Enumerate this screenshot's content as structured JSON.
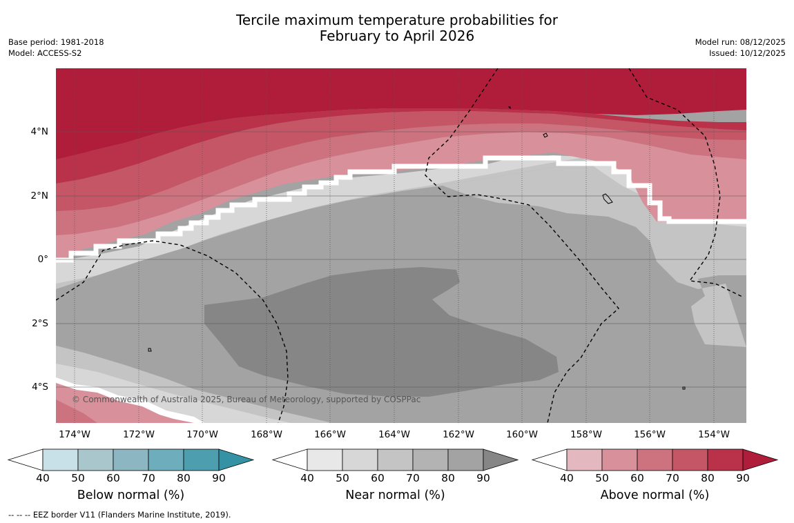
{
  "title": {
    "line1": "Tercile maximum temperature probabilities for",
    "line2": "February to April 2026"
  },
  "meta_left": {
    "base_period": "Base period: 1981-2018",
    "model": "Model: ACCESS-S2"
  },
  "meta_right": {
    "model_run": "Model run: 08/12/2025",
    "issued": "Issued: 10/12/2025"
  },
  "map": {
    "lat_labels": [
      "4°N",
      "2°N",
      "0°",
      "2°S",
      "4°S"
    ],
    "lon_labels": [
      "174°W",
      "172°W",
      "170°W",
      "168°W",
      "166°W",
      "164°W",
      "162°W",
      "160°W",
      "158°W",
      "156°W",
      "154°W"
    ],
    "copyright": "© Commonwealth of Australia 2025, Bureau of Meteorology, supported by COSPPac"
  },
  "colorbars": [
    {
      "title": "Below normal (%)",
      "ticks": [
        "40",
        "50",
        "60",
        "70",
        "80",
        "90"
      ],
      "colors": [
        "#ffffff",
        "#c8e0e7",
        "#a8c6cc",
        "#8cb6c2",
        "#6eaebc",
        "#4d9eae",
        "#3592a4"
      ]
    },
    {
      "title": "Near normal (%)",
      "ticks": [
        "40",
        "50",
        "60",
        "70",
        "80",
        "90"
      ],
      "colors": [
        "#ffffff",
        "#e8e8e8",
        "#d7d7d7",
        "#c4c4c4",
        "#b3b3b3",
        "#a3a3a3",
        "#868686"
      ]
    },
    {
      "title": "Above normal (%)",
      "ticks": [
        "40",
        "50",
        "60",
        "70",
        "80",
        "90"
      ],
      "colors": [
        "#ffffff",
        "#e3b8be",
        "#d8919b",
        "#cd737f",
        "#c45666",
        "#b93249",
        "#b01d3b"
      ]
    }
  ],
  "footnote": "--  --  -- EEZ border V11 (Flanders Marine Institute, 2019)."
}
